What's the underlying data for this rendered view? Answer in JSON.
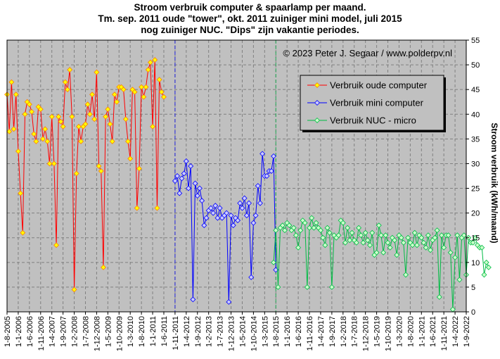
{
  "chart_data": {
    "type": "line",
    "title": [
      "Stroom verbruik computer & spaarlamp per maand.",
      "Tm. sep. 2011 oude \"tower\", okt. 2011 zuiniger mini model, juli 2015",
      "nog zuiniger NUC. \"Dips\" zijn vakantie periodes."
    ],
    "copyright": "© 2023 Peter J. Segaar / www.polderpv.nl",
    "ylabel": "Stroom verbruik (kWh/maand)",
    "ylim": [
      0,
      55
    ],
    "yticks": [
      0,
      5,
      10,
      15,
      20,
      25,
      30,
      35,
      40,
      45,
      50,
      55
    ],
    "x_start_month": "2005-08",
    "xticks": [
      "1-8-2005",
      "1-1-2006",
      "1-6-2006",
      "1-11-2006",
      "1-4-2007",
      "1-9-2007",
      "1-2-2008",
      "1-7-2008",
      "1-12-2008",
      "1-5-2009",
      "1-10-2009",
      "1-3-2010",
      "1-8-2010",
      "1-1-2011",
      "1-6-2011",
      "1-11-2011",
      "1-4-2012",
      "1-9-2012",
      "1-2-2013",
      "1-7-2013",
      "1-12-2013",
      "1-5-2014",
      "1-10-2014",
      "1-3-2015",
      "1-8-2015",
      "1-1-2016",
      "1-6-2016",
      "1-11-2016",
      "1-4-2017",
      "1-9-2017",
      "1-2-2018",
      "1-7-2018",
      "1-12-2018",
      "1-5-2019",
      "1-10-2019",
      "1-3-2020",
      "1-8-2020",
      "1-1-2021",
      "1-6-2021",
      "1-11-2021",
      "1-4-2022",
      "1-9-2022"
    ],
    "grid": true,
    "legend_position": "top-right-inside",
    "vlines": [
      {
        "x": "2011-11",
        "color": "#2222dd"
      },
      {
        "x": "2015-08",
        "color": "#22aa55"
      }
    ],
    "series": [
      {
        "name": "Verbruik oude computer",
        "color": "#ff0000",
        "marker_fill": "#ffff00",
        "marker_edge": "#ff8000",
        "start_month": "2005-08",
        "values": [
          44,
          36.5,
          46.5,
          37,
          44,
          32.5,
          24,
          16,
          40,
          42.5,
          42,
          40.5,
          36,
          34.5,
          41.5,
          41,
          35,
          37,
          34.5,
          30,
          39.5,
          30,
          13.5,
          39.5,
          38.5,
          37.5,
          46.5,
          45,
          49,
          39.5,
          4.5,
          28,
          37.5,
          34.5,
          37.5,
          38,
          42,
          40,
          44,
          39,
          48.5,
          29.5,
          28.5,
          9,
          39.5,
          41,
          38,
          34.5,
          44,
          42.5,
          45.5,
          45.5,
          45,
          39,
          34.5,
          31,
          45,
          44.5,
          21,
          29,
          45.5,
          43.5,
          45.5,
          49,
          50.5,
          37.5,
          51,
          21,
          47,
          44.5,
          43.5
        ]
      },
      {
        "name": "Verbruik mini computer",
        "color": "#0000ff",
        "marker_fill": "#ccccff",
        "marker_edge": "#0000ff",
        "start_month": "2011-11",
        "values": [
          26.5,
          27.5,
          24,
          27,
          28,
          30.5,
          25,
          29.5,
          2.5,
          26,
          23.5,
          25,
          22.5,
          17.5,
          19,
          20.5,
          21,
          20,
          21.5,
          19,
          21,
          19,
          19.5,
          20,
          2,
          19.5,
          17.5,
          19,
          18.5,
          22,
          21,
          23,
          19.5,
          22,
          7,
          18,
          19.5,
          25.5,
          22,
          32,
          27.5,
          27.5,
          28.5,
          28.5,
          31.5,
          8.5
        ]
      },
      {
        "name": "Verbruik NUC - micro",
        "color": "#00bb44",
        "marker_fill": "#ccffcc",
        "marker_edge": "#00bb44",
        "start_month": "2015-07",
        "values": [
          10,
          16.5,
          5,
          17,
          17.5,
          16.5,
          18,
          17.5,
          16.5,
          17,
          15.5,
          13,
          16.5,
          18.5,
          18,
          5,
          17,
          19,
          17,
          18,
          17,
          16.5,
          15,
          13.5,
          17,
          16,
          5,
          15.5,
          15,
          15.5,
          18.5,
          18,
          14,
          17,
          14.5,
          16,
          14.5,
          14,
          17,
          15.5,
          14,
          16,
          14.5,
          13.5,
          16,
          11.5,
          12,
          17.5,
          15.5,
          12,
          15.5,
          14,
          13,
          15,
          14.5,
          11.5,
          15.5,
          15,
          14,
          7.5,
          15,
          14,
          13.5,
          16,
          13.5,
          15.5,
          15,
          14,
          13,
          15.5,
          12.5,
          14.5,
          15,
          16.5,
          3,
          15.5,
          13,
          15.5,
          15.5,
          12,
          0.5,
          11,
          15.5,
          6.5,
          15,
          15.5,
          7.5,
          15,
          14,
          14,
          15,
          13.5,
          13,
          13,
          7.5,
          10,
          9
        ]
      }
    ]
  }
}
